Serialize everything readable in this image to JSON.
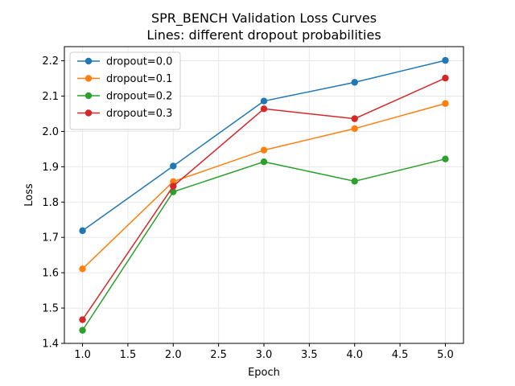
{
  "chart_data": {
    "type": "line",
    "title": "SPR_BENCH Validation Loss Curves",
    "subtitle": "Lines: different dropout probabilities",
    "xlabel": "Epoch",
    "ylabel": "Loss",
    "x": [
      1.0,
      2.0,
      3.0,
      4.0,
      5.0
    ],
    "xlim": [
      0.8,
      5.2
    ],
    "ylim": [
      1.4,
      2.24
    ],
    "xticks": [
      "1.0",
      "1.5",
      "2.0",
      "2.5",
      "3.0",
      "3.5",
      "4.0",
      "4.5",
      "5.0"
    ],
    "yticks": [
      "1.4",
      "1.5",
      "1.6",
      "1.7",
      "1.8",
      "1.9",
      "2.0",
      "2.1",
      "2.2"
    ],
    "grid": true,
    "legend_position": "top-left",
    "series": [
      {
        "name": "dropout=0.0",
        "color": "#1f77b4",
        "values": [
          1.719,
          1.902,
          2.086,
          2.139,
          2.201
        ]
      },
      {
        "name": "dropout=0.1",
        "color": "#ff7f0e",
        "values": [
          1.611,
          1.858,
          1.947,
          2.008,
          2.079
        ]
      },
      {
        "name": "dropout=0.2",
        "color": "#2ca02c",
        "values": [
          1.437,
          1.829,
          1.914,
          1.859,
          1.922
        ]
      },
      {
        "name": "dropout=0.3",
        "color": "#d62728",
        "values": [
          1.467,
          1.845,
          2.064,
          2.036,
          2.151
        ]
      }
    ]
  }
}
